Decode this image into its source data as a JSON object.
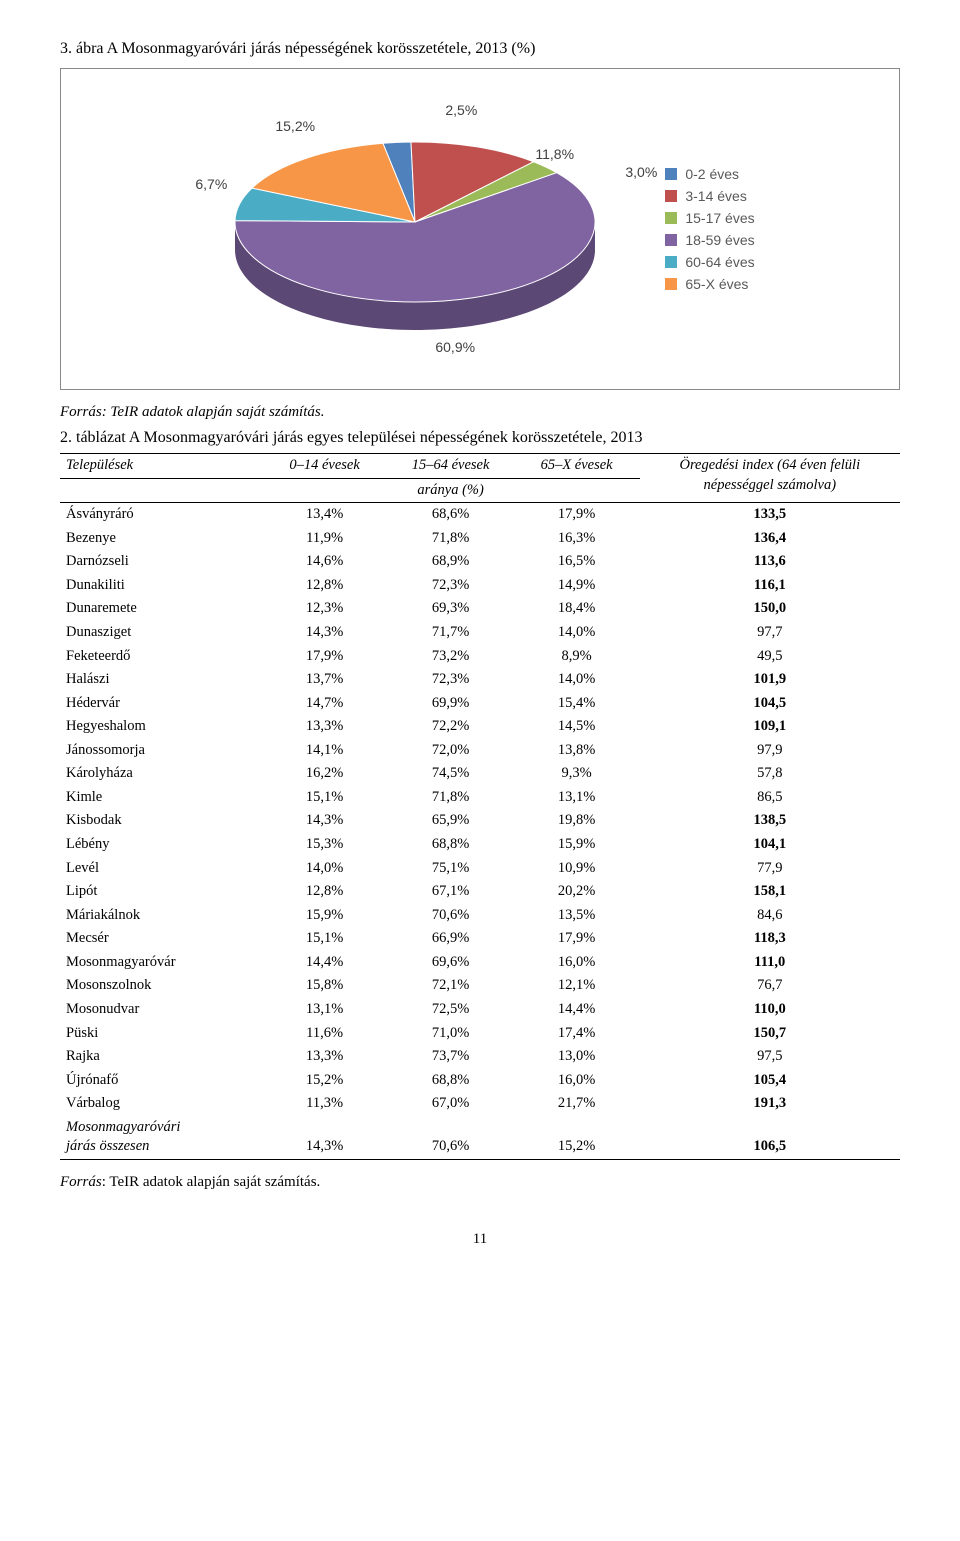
{
  "figure": {
    "title": "3. ábra A Mosonmagyaróvári járás népességének korösszetétele, 2013 (%)",
    "source": "Forrás: TeIR adatok alapján saját számítás.",
    "chart": {
      "type": "pie-3d",
      "background_color": "#ffffff",
      "border_color": "#888888",
      "label_color": "#404040",
      "label_fontsize": 14,
      "series": [
        {
          "label": "0-2 éves",
          "value": 2.5,
          "pct_label": "2,5%",
          "color": "#4f81bd"
        },
        {
          "label": "3-14 éves",
          "value": 11.8,
          "pct_label": "11,8%",
          "color": "#c0504d"
        },
        {
          "label": "15-17 éves",
          "value": 3.0,
          "pct_label": "3,0%",
          "color": "#9bbb59"
        },
        {
          "label": "18-59 éves",
          "value": 60.9,
          "pct_label": "60,9%",
          "color": "#8064a2"
        },
        {
          "label": "60-64 éves",
          "value": 6.7,
          "pct_label": "6,7%",
          "color": "#4bacc6"
        },
        {
          "label": "65-X éves",
          "value": 15.2,
          "pct_label": "15,2%",
          "color": "#f79646"
        }
      ],
      "depth_shade": 0.72
    }
  },
  "table": {
    "title": "2. táblázat A Mosonmagyaróvári járás egyes települései népességének korösszetétele, 2013",
    "columns": [
      "Települések",
      "0–14 évesek",
      "15–64 évesek",
      "65–X évesek",
      "Öregedési index (64 éven felüli népességgel számolva)"
    ],
    "sub_header": "aránya (%)",
    "bold_threshold_col4": 100.0,
    "font_size_pt": 11,
    "border_color": "#000000",
    "rows": [
      [
        "Ásványráró",
        "13,4%",
        "68,6%",
        "17,9%",
        "133,5"
      ],
      [
        "Bezenye",
        "11,9%",
        "71,8%",
        "16,3%",
        "136,4"
      ],
      [
        "Darnózseli",
        "14,6%",
        "68,9%",
        "16,5%",
        "113,6"
      ],
      [
        "Dunakiliti",
        "12,8%",
        "72,3%",
        "14,9%",
        "116,1"
      ],
      [
        "Dunaremete",
        "12,3%",
        "69,3%",
        "18,4%",
        "150,0"
      ],
      [
        "Dunasziget",
        "14,3%",
        "71,7%",
        "14,0%",
        "97,7"
      ],
      [
        "Feketeerdő",
        "17,9%",
        "73,2%",
        "8,9%",
        "49,5"
      ],
      [
        "Halászi",
        "13,7%",
        "72,3%",
        "14,0%",
        "101,9"
      ],
      [
        "Hédervár",
        "14,7%",
        "69,9%",
        "15,4%",
        "104,5"
      ],
      [
        "Hegyeshalom",
        "13,3%",
        "72,2%",
        "14,5%",
        "109,1"
      ],
      [
        "Jánossomorja",
        "14,1%",
        "72,0%",
        "13,8%",
        "97,9"
      ],
      [
        "Károlyháza",
        "16,2%",
        "74,5%",
        "9,3%",
        "57,8"
      ],
      [
        "Kimle",
        "15,1%",
        "71,8%",
        "13,1%",
        "86,5"
      ],
      [
        "Kisbodak",
        "14,3%",
        "65,9%",
        "19,8%",
        "138,5"
      ],
      [
        "Lébény",
        "15,3%",
        "68,8%",
        "15,9%",
        "104,1"
      ],
      [
        "Levél",
        "14,0%",
        "75,1%",
        "10,9%",
        "77,9"
      ],
      [
        "Lipót",
        "12,8%",
        "67,1%",
        "20,2%",
        "158,1"
      ],
      [
        "Máriakálnok",
        "15,9%",
        "70,6%",
        "13,5%",
        "84,6"
      ],
      [
        "Mecsér",
        "15,1%",
        "66,9%",
        "17,9%",
        "118,3"
      ],
      [
        "Mosonmagyaróvár",
        "14,4%",
        "69,6%",
        "16,0%",
        "111,0"
      ],
      [
        "Mosonszolnok",
        "15,8%",
        "72,1%",
        "12,1%",
        "76,7"
      ],
      [
        "Mosonudvar",
        "13,1%",
        "72,5%",
        "14,4%",
        "110,0"
      ],
      [
        "Püski",
        "11,6%",
        "71,0%",
        "17,4%",
        "150,7"
      ],
      [
        "Rajka",
        "13,3%",
        "73,7%",
        "13,0%",
        "97,5"
      ],
      [
        "Újrónafő",
        "15,2%",
        "68,8%",
        "16,0%",
        "105,4"
      ],
      [
        "Várbalog",
        "11,3%",
        "67,0%",
        "21,7%",
        "191,3"
      ]
    ],
    "summary_row": [
      "Mosonmagyaróvári járás összesen",
      "14,3%",
      "70,6%",
      "15,2%",
      "106,5"
    ],
    "source": "Forrás: TeIR adatok alapján saját számítás."
  },
  "page_number": "11"
}
